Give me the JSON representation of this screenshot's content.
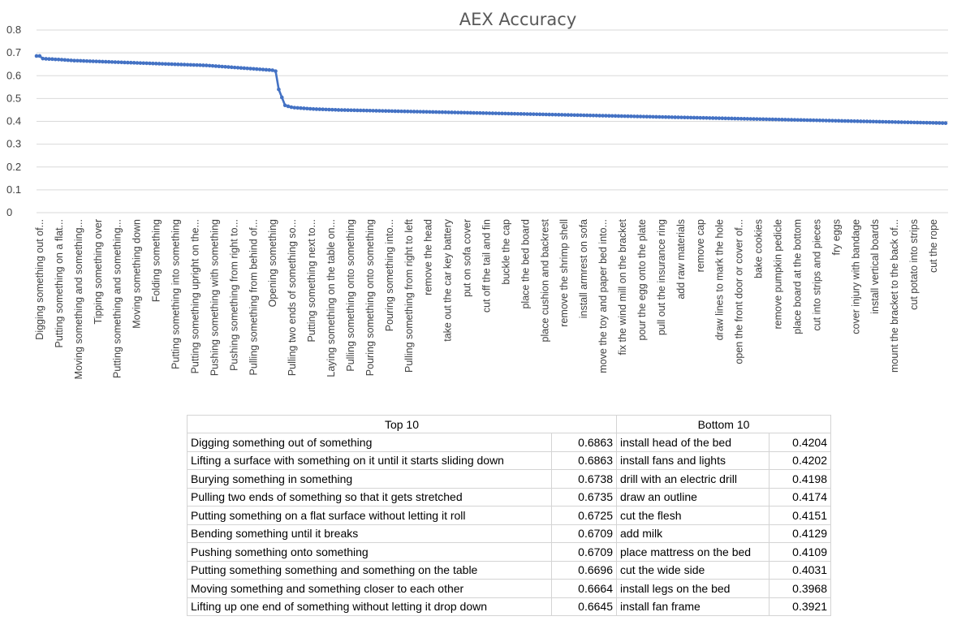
{
  "chart_data": {
    "type": "line",
    "title": "AEX Accuracy",
    "xlabel": "",
    "ylabel": "",
    "ylim": [
      0,
      0.8
    ],
    "yticks": [
      "0",
      "0.1",
      "0.2",
      "0.3",
      "0.4",
      "0.5",
      "0.6",
      "0.7",
      "0.8"
    ],
    "grid": true,
    "legend": "none",
    "x_tick_labels": [
      "Digging something out of...",
      "Putting something on a flat...",
      "Moving something and something...",
      "Tipping something over",
      "Putting something and something...",
      "Moving something down",
      "Folding something",
      "Putting something into something",
      "Putting something upright on the...",
      "Pushing something with something",
      "Pushing something from right to...",
      "Pulling something from behind of...",
      "Opening something",
      "Pulling two ends of something so...",
      "Putting something next to...",
      "Laying something on the table on...",
      "Pulling something onto something",
      "Pouring something onto something",
      "Pouring something into...",
      "Pulling something from right to left",
      "remove the head",
      "take out the car key battery",
      "put on sofa cover",
      "cut off the tail and fin",
      "buckle the cap",
      "place the bed board",
      "place cushion and backrest",
      "remove the shrimp shell",
      "install armrest on sofa",
      "move the toy and paper bed into...",
      "fix the wind mill on the bracket",
      "pour the egg onto the plate",
      "pull out the insurance ring",
      "add raw materials",
      "remove cap",
      "draw lines to mark the hole",
      "open the front door or cover of...",
      "bake cookies",
      "remove pumpkin pedicle",
      "place board at the bottom",
      "cut into strips and pieces",
      "fry eggs",
      "cover injury with bandage",
      "install vertical boards",
      "mount the bracket to the back of...",
      "cut potato into strips",
      "cut the rope"
    ],
    "series": [
      {
        "values": [
          0.6863,
          0.6863,
          0.675,
          0.674,
          0.673,
          0.6725,
          0.6715,
          0.6709,
          0.67,
          0.669,
          0.668,
          0.667,
          0.666,
          0.6658,
          0.6652,
          0.6646,
          0.664,
          0.6635,
          0.663,
          0.6625,
          0.662,
          0.6615,
          0.661,
          0.6605,
          0.66,
          0.6595,
          0.659,
          0.6585,
          0.658,
          0.6575,
          0.657,
          0.6565,
          0.656,
          0.6555,
          0.655,
          0.6545,
          0.654,
          0.6535,
          0.653,
          0.6525,
          0.652,
          0.6515,
          0.651,
          0.6505,
          0.65,
          0.6495,
          0.649,
          0.6485,
          0.648,
          0.6475,
          0.647,
          0.6465,
          0.646,
          0.6455,
          0.645,
          0.644,
          0.643,
          0.642,
          0.641,
          0.64,
          0.639,
          0.638,
          0.637,
          0.636,
          0.635,
          0.634,
          0.633,
          0.632,
          0.631,
          0.63,
          0.629,
          0.628,
          0.627,
          0.626,
          0.625,
          0.624,
          0.62,
          0.54,
          0.505,
          0.47,
          0.466,
          0.462,
          0.46,
          0.459,
          0.458,
          0.457,
          0.456,
          0.455,
          0.454,
          0.4535,
          0.453,
          0.4525,
          0.452,
          0.4515,
          0.451,
          0.4505,
          0.45,
          0.4497,
          0.4494,
          0.4491,
          0.4488,
          0.4485,
          0.4482,
          0.4479,
          0.4476,
          0.4473,
          0.447,
          0.4467,
          0.4464,
          0.4461,
          0.4458,
          0.4455,
          0.4452,
          0.4449,
          0.4446,
          0.4443,
          0.444,
          0.4437,
          0.4434,
          0.4431,
          0.4428,
          0.4425,
          0.4422,
          0.4419,
          0.4416,
          0.4413,
          0.441,
          0.4407,
          0.4404,
          0.4401,
          0.4398,
          0.4395,
          0.4392,
          0.4389,
          0.4386,
          0.4383,
          0.438,
          0.4377,
          0.4374,
          0.4371,
          0.4368,
          0.4365,
          0.4362,
          0.4359,
          0.4356,
          0.4353,
          0.435,
          0.4347,
          0.4344,
          0.4341,
          0.4338,
          0.4335,
          0.4332,
          0.4329,
          0.4326,
          0.4323,
          0.432,
          0.4317,
          0.4314,
          0.4311,
          0.4308,
          0.4305,
          0.4302,
          0.4299,
          0.4296,
          0.4293,
          0.429,
          0.4287,
          0.4284,
          0.4281,
          0.4278,
          0.4275,
          0.4272,
          0.4269,
          0.4266,
          0.4263,
          0.426,
          0.4257,
          0.4254,
          0.4251,
          0.4248,
          0.4245,
          0.4242,
          0.4239,
          0.4236,
          0.4233,
          0.423,
          0.4227,
          0.4224,
          0.4221,
          0.4218,
          0.4215,
          0.4212,
          0.4209,
          0.4206,
          0.4203,
          0.42,
          0.4197,
          0.4194,
          0.4191,
          0.4188,
          0.4185,
          0.4182,
          0.4179,
          0.4176,
          0.4173,
          0.417,
          0.4167,
          0.4164,
          0.4161,
          0.4158,
          0.4155,
          0.4152,
          0.4149,
          0.4146,
          0.4143,
          0.414,
          0.4137,
          0.4134,
          0.4131,
          0.4128,
          0.4125,
          0.4122,
          0.4119,
          0.4116,
          0.4113,
          0.411,
          0.4107,
          0.4104,
          0.4101,
          0.4098,
          0.4095,
          0.4092,
          0.4089,
          0.4086,
          0.4083,
          0.408,
          0.4077,
          0.4074,
          0.4071,
          0.4068,
          0.4065,
          0.4062,
          0.4059,
          0.4056,
          0.4053,
          0.405,
          0.4047,
          0.4044,
          0.4041,
          0.4038,
          0.4035,
          0.4032,
          0.4029,
          0.4026,
          0.4023,
          0.402,
          0.4017,
          0.4014,
          0.4011,
          0.4008,
          0.4005,
          0.4002,
          0.3999,
          0.3996,
          0.3993,
          0.399,
          0.3987,
          0.3984,
          0.3981,
          0.3978,
          0.3975,
          0.3972,
          0.3969,
          0.3966,
          0.3963,
          0.396,
          0.3957,
          0.3954,
          0.3951,
          0.3948,
          0.3945,
          0.3942,
          0.3939,
          0.3936,
          0.3933,
          0.393,
          0.3927,
          0.3924,
          0.3921
        ]
      }
    ],
    "color": "#4472c4"
  },
  "table": {
    "headers": [
      "Top 10",
      "Bottom 10"
    ],
    "rows": [
      [
        "Digging something out of something",
        "0.6863",
        "install head of the bed",
        "0.4204"
      ],
      [
        "Lifting a surface with something on it until it starts sliding down",
        "0.6863",
        "install fans and lights",
        "0.4202"
      ],
      [
        "Burying something in something",
        "0.6738",
        "drill with an electric drill",
        "0.4198"
      ],
      [
        "Pulling two ends of something so that it gets stretched",
        "0.6735",
        "draw an outline",
        "0.4174"
      ],
      [
        "Putting something on a flat surface without letting it roll",
        "0.6725",
        "cut the flesh",
        "0.4151"
      ],
      [
        "Bending something until it breaks",
        "0.6709",
        "add milk",
        "0.4129"
      ],
      [
        "Pushing something onto something",
        "0.6709",
        "place mattress on the bed",
        "0.4109"
      ],
      [
        "Putting something something and something on the table",
        "0.6696",
        "cut the wide side",
        "0.4031"
      ],
      [
        "Moving something and something closer to each other",
        "0.6664",
        "install legs on the bed",
        "0.3968"
      ],
      [
        "Lifting up one end of something without letting it drop down",
        "0.6645",
        "install fan frame",
        "0.3921"
      ]
    ]
  }
}
